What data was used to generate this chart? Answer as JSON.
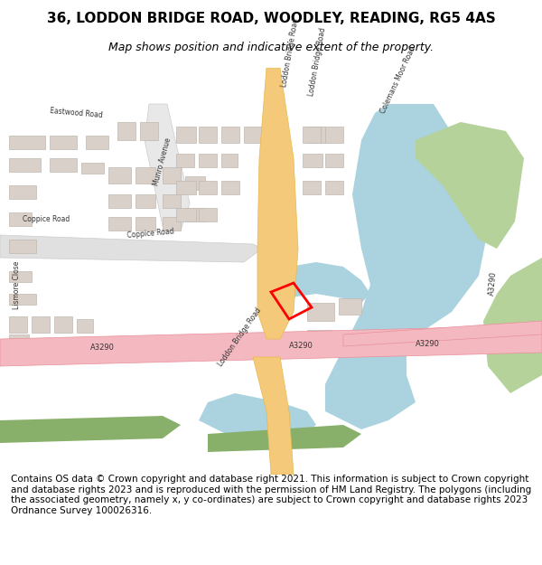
{
  "title": "36, LODDON BRIDGE ROAD, WOODLEY, READING, RG5 4AS",
  "subtitle": "Map shows position and indicative extent of the property.",
  "footer": "Contains OS data © Crown copyright and database right 2021. This information is subject to Crown copyright and database rights 2023 and is reproduced with the permission of HM Land Registry. The polygons (including the associated geometry, namely x, y co-ordinates) are subject to Crown copyright and database rights 2023 Ordnance Survey 100026316.",
  "bg_color": "#ffffff",
  "map_bg": "#f8f8f8",
  "road_major_color": "#f5c97a",
  "road_major_outline": "#e8b84b",
  "road_pink_color": "#f4b8c0",
  "road_pink_outline": "#e89099",
  "water_color": "#aad3df",
  "green_color": "#b5d29a",
  "green2_color": "#88b06a",
  "building_color": "#d9d0c9",
  "building_outline": "#c0b8b0",
  "plot_color": "#ff0000",
  "plot_fill": "none",
  "title_fontsize": 11,
  "subtitle_fontsize": 9,
  "footer_fontsize": 7.5
}
